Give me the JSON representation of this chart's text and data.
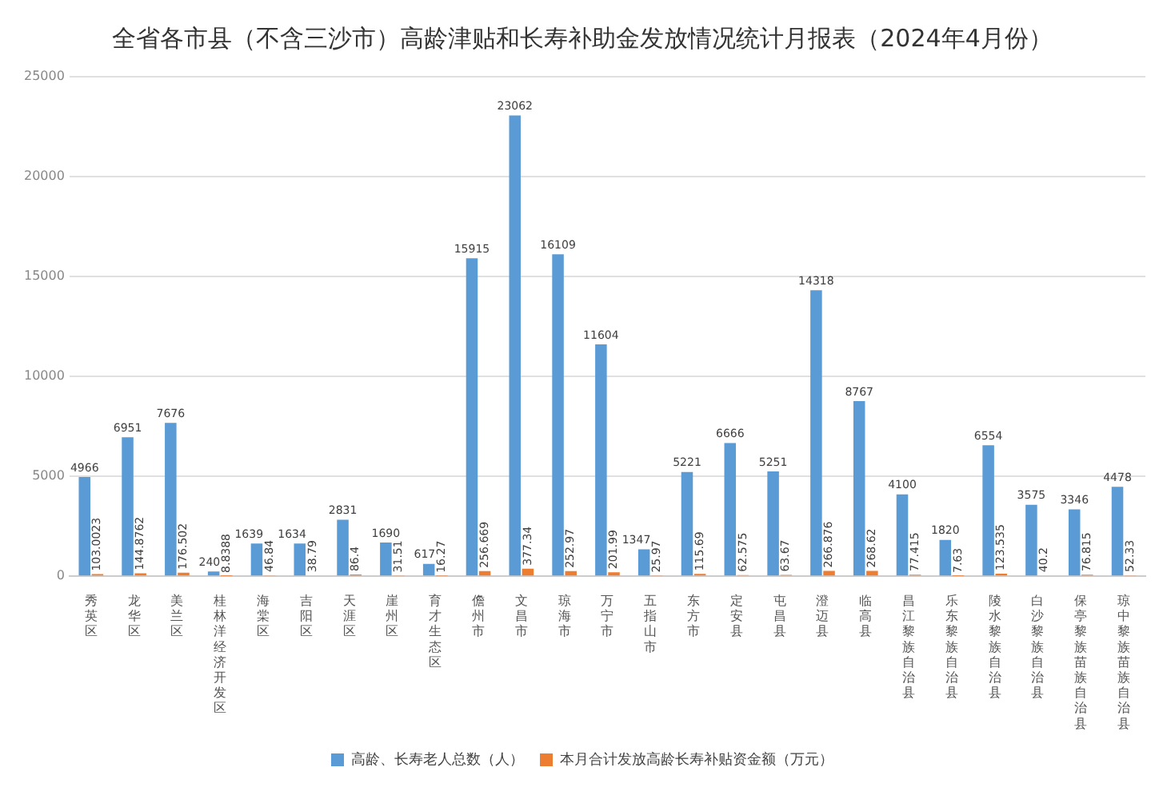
{
  "chart_data": {
    "type": "bar",
    "title": "全省各市县（不含三沙市）高龄津贴和长寿补助金发放情况统计月报表（2024年4月份）",
    "categories": [
      "秀英区",
      "龙华区",
      "美兰区",
      "桂林洋经济开发区",
      "海棠区",
      "吉阳区",
      "天涯区",
      "崖州区",
      "育才生态区",
      "儋州市",
      "文昌市",
      "琼海市",
      "万宁市",
      "五指山市",
      "东方市",
      "定安县",
      "屯昌县",
      "澄迈县",
      "临高县",
      "昌江黎族自治县",
      "乐东黎族自治县",
      "陵水黎族自治县",
      "白沙黎族自治县",
      "保亭黎族苗族自治县",
      "琼中黎族苗族自治县"
    ],
    "series": [
      {
        "name": "高龄、长寿老人总数（人）",
        "color": "#5b9bd5",
        "values": [
          4966,
          6951,
          7676,
          240,
          1639,
          1634,
          2831,
          1690,
          617,
          15915,
          23062,
          16109,
          11604,
          1347,
          5221,
          6666,
          5251,
          14318,
          8767,
          4100,
          1820,
          6554,
          3575,
          3346,
          4478
        ]
      },
      {
        "name": "本月合计发放高龄长寿补贴资金额（万元）",
        "color": "#ed7d31",
        "values": [
          103.0023,
          144.8762,
          176.502,
          8.8388,
          46.84,
          38.79,
          86.4,
          31.51,
          16.27,
          256.669,
          377.34,
          252.97,
          201.99,
          25.97,
          115.69,
          62.575,
          63.67,
          266.876,
          268.62,
          77.415,
          7.63,
          123.535,
          40.2,
          76.815,
          52.33
        ]
      }
    ],
    "ylim": [
      0,
      25000
    ],
    "yticks": [
      0,
      5000,
      10000,
      15000,
      20000,
      25000
    ],
    "grid": "y",
    "legend": "bottom",
    "data_labels": true
  }
}
